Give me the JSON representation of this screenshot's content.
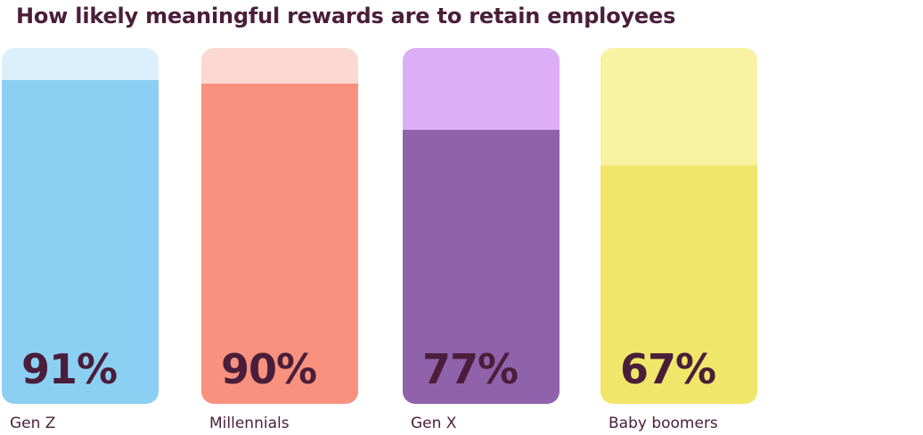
{
  "chart_data": {
    "type": "bar",
    "title": "How likely meaningful rewards are to retain employees",
    "categories": [
      "Gen Z",
      "Millennials",
      "Gen X",
      "Baby boomers"
    ],
    "values": [
      91,
      90,
      77,
      67
    ],
    "value_labels": [
      "91%",
      "90%",
      "77%",
      "67%"
    ],
    "ylim": [
      0,
      100
    ],
    "grid": false,
    "colors": {
      "fill": [
        "#8bd0f3",
        "#f8917e",
        "#9062ab",
        "#f0e66a"
      ],
      "track": [
        "#dbf0fb",
        "#fbd8d2",
        "#dbaef5",
        "#f8f2a2"
      ],
      "text": "#4a1e3a"
    }
  }
}
